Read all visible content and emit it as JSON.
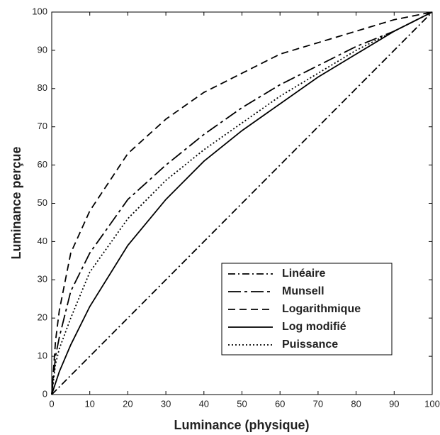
{
  "chart_data": {
    "type": "line",
    "xlabel": "Luminance (physique)",
    "ylabel": "Luminance perçue",
    "x": [
      0,
      1,
      2,
      5,
      10,
      20,
      30,
      40,
      50,
      60,
      70,
      80,
      90,
      100
    ],
    "series": [
      {
        "name": "Linéaire",
        "color": "#000000",
        "linestyle": "dashdot",
        "values": [
          0,
          1,
          2,
          5,
          10,
          20,
          30,
          40,
          50,
          60,
          70,
          80,
          90,
          100
        ]
      },
      {
        "name": "Munsell",
        "color": "#000000",
        "linestyle": "longdashdot",
        "values": [
          0,
          10,
          15,
          27,
          37,
          51,
          60,
          68,
          75,
          81,
          86,
          91,
          95,
          100
        ]
      },
      {
        "name": "Logarithmique",
        "color": "#000000",
        "linestyle": "dashed",
        "values": [
          0,
          14,
          22,
          37,
          48,
          63,
          72,
          79,
          84,
          89,
          92,
          95,
          98,
          100
        ]
      },
      {
        "name": "Log modifié",
        "color": "#000000",
        "linestyle": "solid",
        "values": [
          0,
          3,
          6,
          13,
          23,
          39,
          51,
          61,
          69,
          76,
          83,
          89,
          95,
          100
        ]
      },
      {
        "name": "Puissance",
        "color": "#000000",
        "linestyle": "dotted",
        "values": [
          0,
          8,
          12,
          20,
          32,
          46,
          56,
          64,
          71,
          78,
          84,
          90,
          95,
          100
        ]
      }
    ],
    "xlim": [
      0,
      100
    ],
    "ylim": [
      0,
      100
    ],
    "xticks": [
      0,
      10,
      20,
      30,
      40,
      50,
      60,
      70,
      80,
      90,
      100
    ],
    "yticks": [
      0,
      10,
      20,
      30,
      40,
      50,
      60,
      70,
      80,
      90,
      100
    ],
    "grid": false,
    "legend": "lower right"
  }
}
